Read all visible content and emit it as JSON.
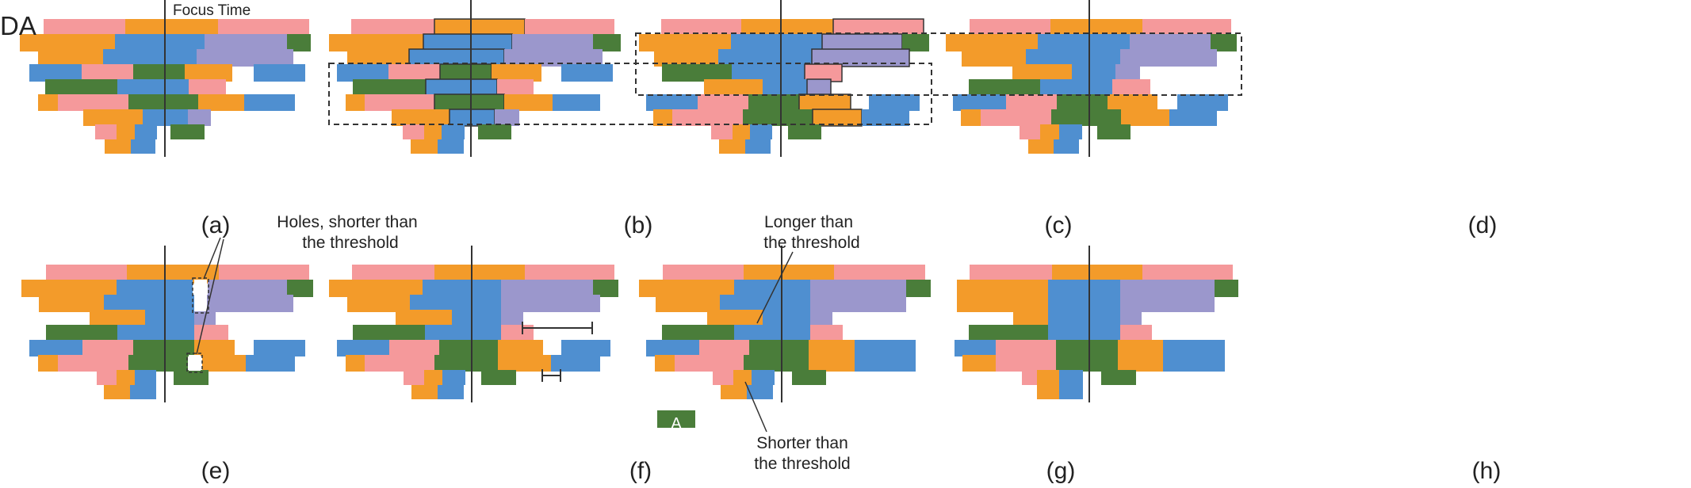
{
  "figure": {
    "corner_label": "DA",
    "focus_time_label": "Focus Time",
    "panel_labels": [
      "(a)",
      "(b)",
      "(c)",
      "(d)",
      "(e)",
      "(f)",
      "(g)",
      "(h)"
    ],
    "annotations": {
      "holes_line1": "Holes, shorter than",
      "holes_line2": "the threshold",
      "longer_line1": "Longer than",
      "longer_line2": "the threshold",
      "shorter_line1": "Shorter than",
      "shorter_line2": "the threshold",
      "block_a": "A"
    },
    "colors": {
      "pink": "#f5999b",
      "orange": "#f39b2a",
      "blue": "#4f8fd0",
      "purple": "#9b97cc",
      "green": "#4a7d3a",
      "line": "#333333"
    }
  }
}
